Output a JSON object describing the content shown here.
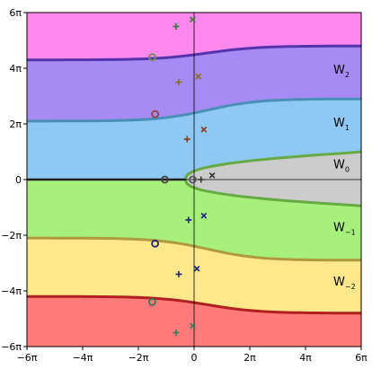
{
  "chart_data": {
    "type": "area",
    "title": "",
    "xlabel": "",
    "ylabel": "",
    "x_unit": "π",
    "y_unit": "π",
    "xlim": [
      -6,
      6
    ],
    "ylim": [
      -6,
      6
    ],
    "x_ticks": [
      {
        "value": -6,
        "label": "−6π"
      },
      {
        "value": -4,
        "label": "−4π"
      },
      {
        "value": -2,
        "label": "−2π"
      },
      {
        "value": 0,
        "label": "0"
      },
      {
        "value": 2,
        "label": "2π"
      },
      {
        "value": 4,
        "label": "4π"
      },
      {
        "value": 6,
        "label": "6π"
      }
    ],
    "y_ticks": [
      {
        "value": 6,
        "label": "6π"
      },
      {
        "value": 4,
        "label": "4π"
      },
      {
        "value": 2,
        "label": "2π"
      },
      {
        "value": 0,
        "label": "0"
      },
      {
        "value": -2,
        "label": "−2π"
      },
      {
        "value": -4,
        "label": "−4π"
      },
      {
        "value": -6,
        "label": "−6π"
      }
    ],
    "regions": [
      {
        "label": "W",
        "sub": "2",
        "fill": "#a78bf5",
        "label_at": [
          5.0,
          3.8
        ]
      },
      {
        "label": "W",
        "sub": "1",
        "fill": "#8ec8f5",
        "label_at": [
          5.0,
          1.9
        ]
      },
      {
        "label": "W",
        "sub": "0",
        "fill": "#cccccc",
        "label_at": [
          5.0,
          0.4
        ]
      },
      {
        "label": "W",
        "sub": "−1",
        "fill": "#a8f07c",
        "label_at": [
          5.0,
          -1.85
        ]
      },
      {
        "label": "W",
        "sub": "−2",
        "fill": "#ffe88c",
        "label_at": [
          5.0,
          -3.8
        ]
      }
    ],
    "top_fill": "#ff88ee",
    "bottom_fill": "#ff7b7b",
    "boundaries": [
      {
        "name": "upper-2",
        "color": "#5533aa",
        "left_y": 4.3,
        "right_y": 4.8
      },
      {
        "name": "upper-1",
        "color": "#4a8fb8",
        "left_y": 2.1,
        "right_y": 2.9
      },
      {
        "name": "lower-1",
        "color": "#b09a40",
        "left_y": -2.1,
        "right_y": -2.9
      },
      {
        "name": "lower-2",
        "color": "#b02020",
        "left_y": -4.2,
        "right_y": -4.8
      }
    ],
    "w0_boundary": {
      "color": "#66aa44",
      "vertex_x": -0.3,
      "right_y_top": 1.0,
      "right_y_bottom": -0.95
    },
    "circles": [
      {
        "x": -1.5,
        "y": 4.4,
        "color": "#6b8e5a"
      },
      {
        "x": -1.4,
        "y": 2.35,
        "color": "#9b3d3d"
      },
      {
        "x": -1.05,
        "y": 0.0,
        "color": "#444444"
      },
      {
        "x": -0.05,
        "y": 0.0,
        "color": "#555555"
      },
      {
        "x": -1.4,
        "y": -2.3,
        "color": "#1a237e"
      },
      {
        "x": -1.5,
        "y": -4.4,
        "color": "#2e7d5a"
      }
    ],
    "plus_markers": [
      {
        "x": -0.65,
        "y": 5.5,
        "color": "#2e7d32"
      },
      {
        "x": -0.55,
        "y": 3.5,
        "color": "#8a6d1a"
      },
      {
        "x": -0.25,
        "y": 1.45,
        "color": "#8b3a1a"
      },
      {
        "x": 0.25,
        "y": 0.0,
        "color": "#333333"
      },
      {
        "x": -0.2,
        "y": -1.45,
        "color": "#1a237e"
      },
      {
        "x": -0.55,
        "y": -3.4,
        "color": "#1a237e"
      },
      {
        "x": -0.65,
        "y": -5.5,
        "color": "#2e7d5a"
      }
    ],
    "cross_markers": [
      {
        "x": -0.05,
        "y": 5.75,
        "color": "#2e7d32"
      },
      {
        "x": 0.15,
        "y": 3.7,
        "color": "#8a6d1a"
      },
      {
        "x": 0.35,
        "y": 1.8,
        "color": "#8b3a1a"
      },
      {
        "x": 0.65,
        "y": 0.15,
        "color": "#333333"
      },
      {
        "x": 0.35,
        "y": -1.3,
        "color": "#1a237e"
      },
      {
        "x": 0.1,
        "y": -3.2,
        "color": "#1a237e"
      },
      {
        "x": -0.05,
        "y": -5.25,
        "color": "#2e7d5a"
      }
    ]
  }
}
